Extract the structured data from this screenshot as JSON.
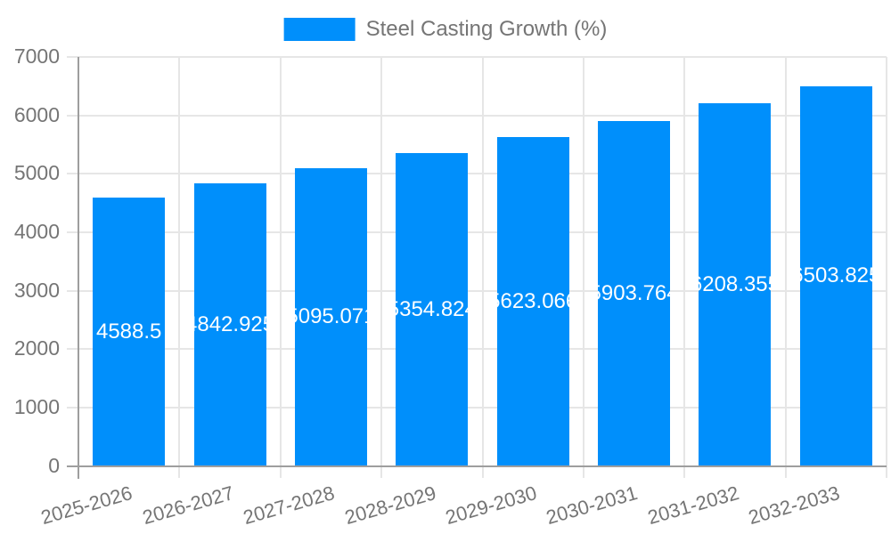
{
  "chart_data": {
    "type": "bar",
    "title": "",
    "series_name": "Steel Casting Growth (%)",
    "legend_position": "top",
    "categories": [
      "2025-2026",
      "2026-2027",
      "2027-2028",
      "2028-2029",
      "2029-2030",
      "2030-2031",
      "2031-2032",
      "2032-2033"
    ],
    "values": [
      4588.5,
      4842.925,
      5095.071,
      5354.824,
      5623.066,
      5903.764,
      6208.355,
      6503.825
    ],
    "value_labels": [
      "4588.5",
      "4842.925",
      "5095.071",
      "5354.824",
      "5623.066",
      "5903.764",
      "6208.355",
      "6503.825"
    ],
    "xlabel": "",
    "ylabel": "",
    "ylim": [
      0,
      7000
    ],
    "yticks": [
      0,
      1000,
      2000,
      3000,
      4000,
      5000,
      6000,
      7000
    ],
    "grid": true,
    "colors": {
      "bar": "#008ffb",
      "axis_text": "#757575",
      "gridline": "#e6e6e6",
      "axis_line": "#9e9e9e",
      "bar_label_text": "#ffffff",
      "background": "#ffffff"
    }
  }
}
